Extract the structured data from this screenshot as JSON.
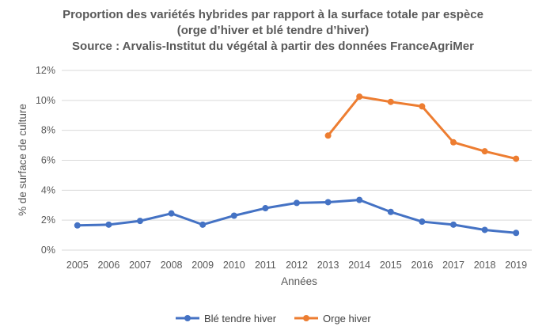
{
  "chart_data": {
    "type": "line",
    "title_lines": [
      "Proportion des variétés hybrides par rapport à la surface totale par espèce",
      "(orge d’hiver et blé tendre d’hiver)",
      "Source : Arvalis-Institut du végétal à partir des données FranceAgriMer"
    ],
    "xlabel": "Années",
    "ylabel": "% de surface de culture",
    "categories": [
      "2005",
      "2006",
      "2007",
      "2008",
      "2009",
      "2010",
      "2011",
      "2012",
      "2013",
      "2014",
      "2015",
      "2016",
      "2017",
      "2018",
      "2019"
    ],
    "y_ticks": [
      "0%",
      "2%",
      "4%",
      "6%",
      "8%",
      "10%",
      "12%"
    ],
    "ylim": [
      0,
      12
    ],
    "grid": true,
    "legend_position": "bottom",
    "series": [
      {
        "name": "Blé tendre hiver",
        "color": "#4472c4",
        "values": [
          1.65,
          1.7,
          1.95,
          2.45,
          1.7,
          2.3,
          2.8,
          3.15,
          3.2,
          3.35,
          2.55,
          1.9,
          1.7,
          1.35,
          1.15
        ]
      },
      {
        "name": "Orge hiver",
        "color": "#ed7d31",
        "values": [
          null,
          null,
          null,
          null,
          null,
          null,
          null,
          null,
          7.65,
          10.25,
          9.9,
          9.6,
          7.2,
          6.6,
          6.1
        ]
      }
    ]
  }
}
